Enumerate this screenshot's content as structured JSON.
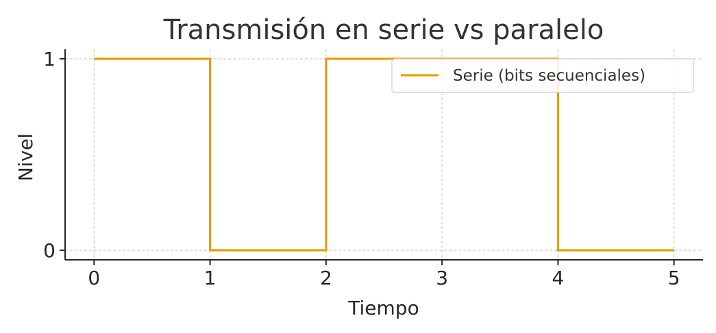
{
  "chart_data": {
    "type": "line",
    "title": "Transmisión en serie vs paralelo",
    "xlabel": "Tiempo",
    "ylabel": "Nivel",
    "xlim": [
      -0.25,
      5.25
    ],
    "ylim": [
      -0.05,
      1.05
    ],
    "x_ticks": [
      "0",
      "1",
      "2",
      "3",
      "4",
      "5"
    ],
    "y_ticks": [
      "0",
      "1"
    ],
    "grid": true,
    "legend_position": "upper right",
    "series": [
      {
        "name": "Serie (bits secuenciales)",
        "color": "#E69F00",
        "step": "post",
        "x": [
          0,
          1,
          2,
          3,
          4,
          5
        ],
        "y": [
          1,
          0,
          1,
          1,
          0,
          0
        ]
      }
    ]
  }
}
